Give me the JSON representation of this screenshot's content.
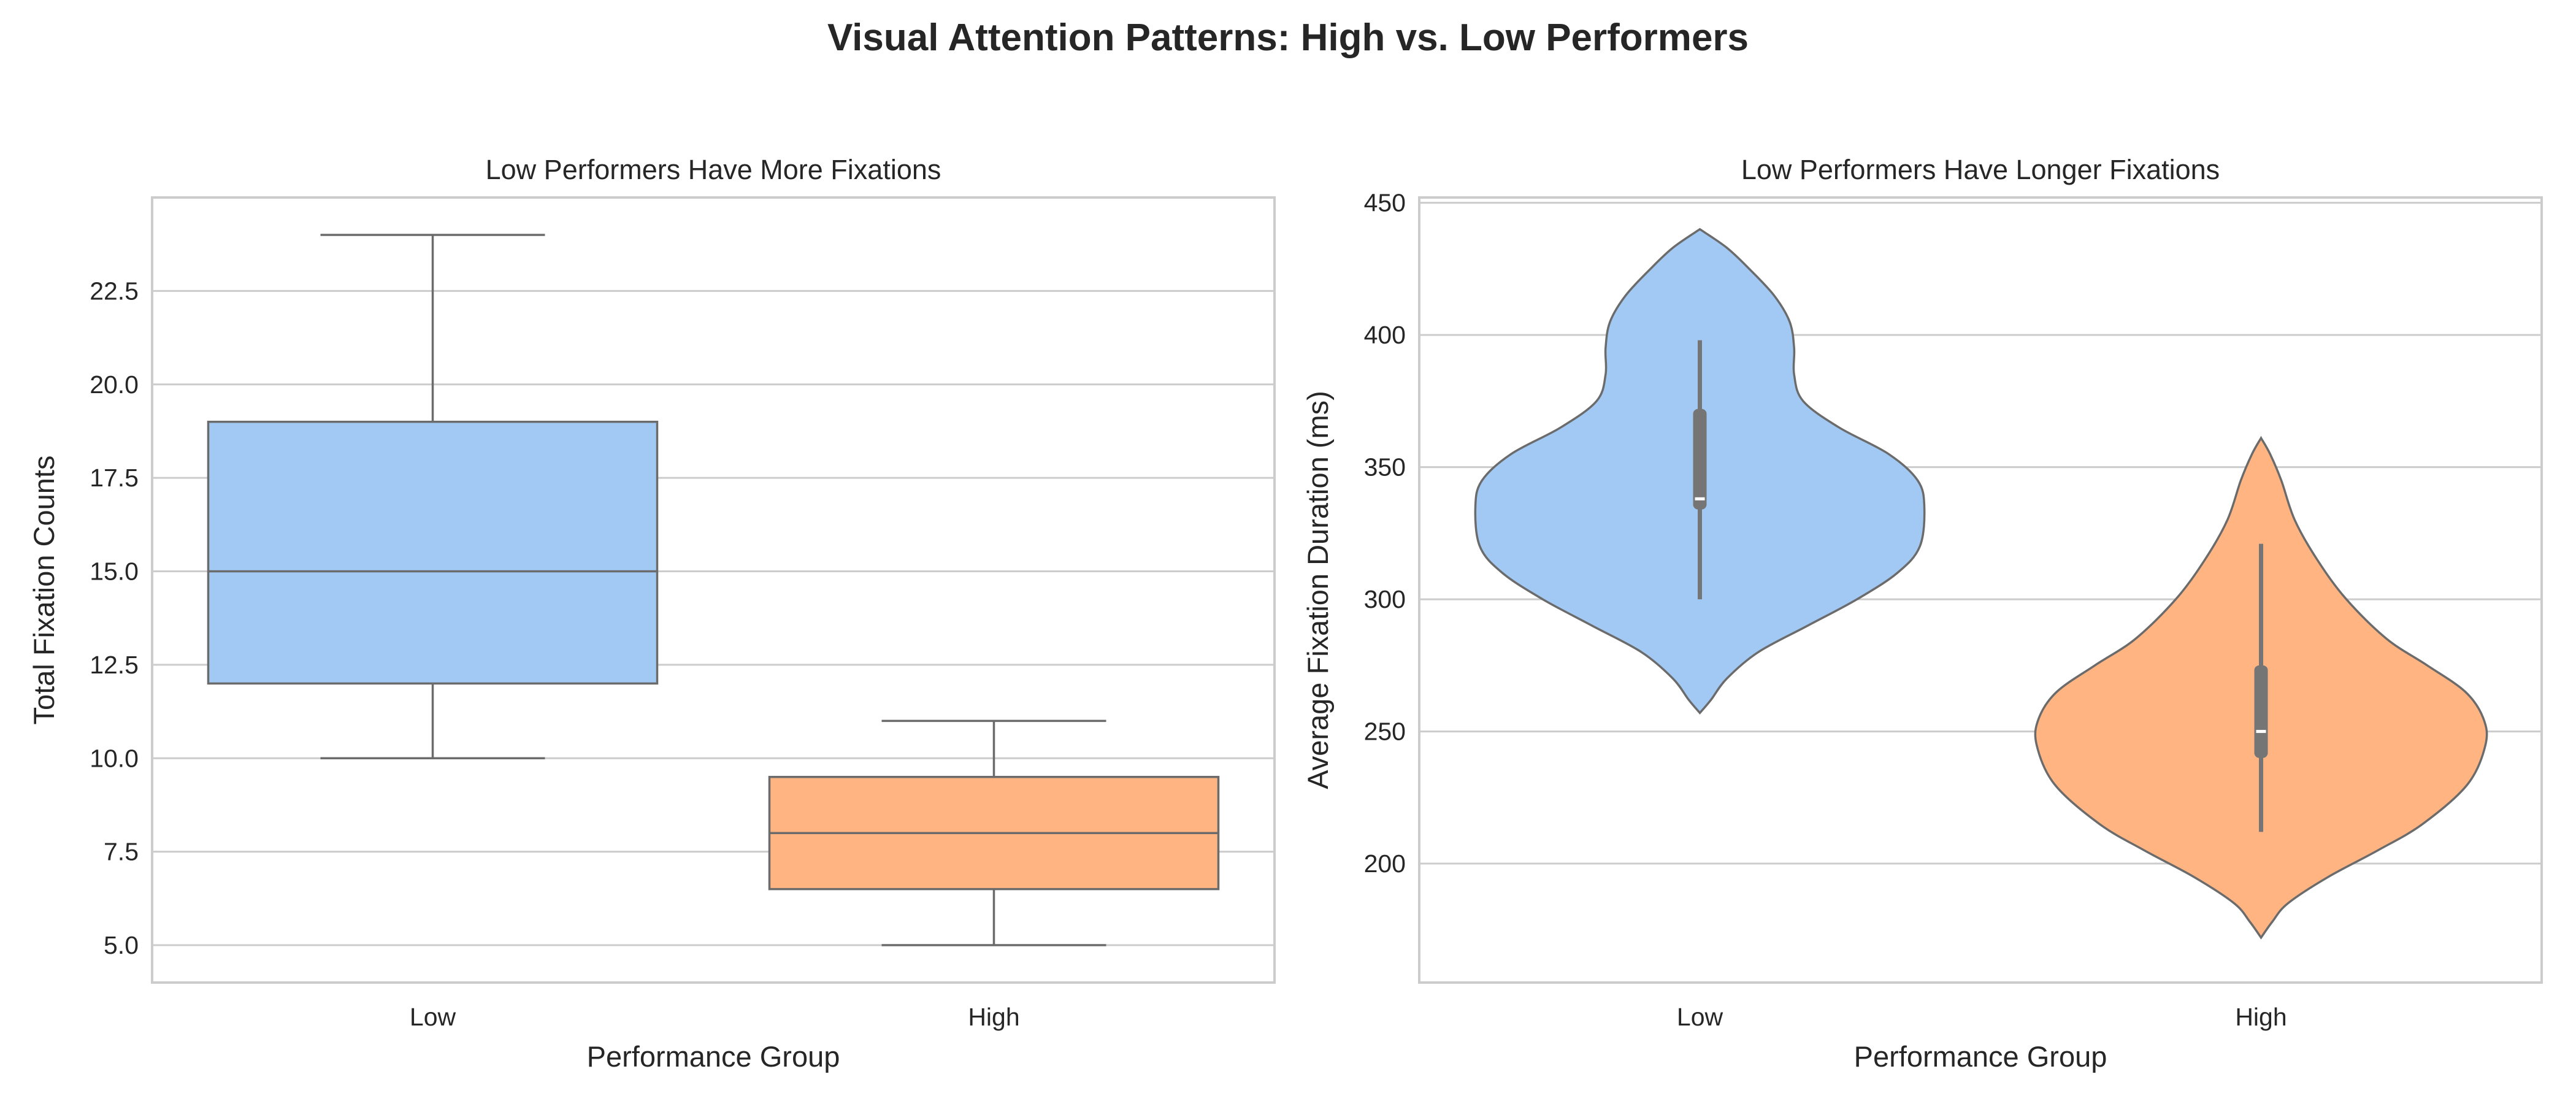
{
  "figure": {
    "title": "Visual Attention Patterns: High vs. Low Performers"
  },
  "colors": {
    "low": "#a1c9f4",
    "high": "#ffb482",
    "edge": "#6b6b6b",
    "grid": "#cccccc",
    "frame": "#cccccc",
    "inner_box": "#757575",
    "median_marker": "#ffffff"
  },
  "chart_data": [
    {
      "type": "box",
      "title": "Low Performers Have More Fixations",
      "xlabel": "Performance Group",
      "ylabel": "Total Fixation Counts",
      "categories": [
        "Low",
        "High"
      ],
      "ylim": [
        4.0,
        25.0
      ],
      "yticks": [
        5.0,
        7.5,
        10.0,
        12.5,
        15.0,
        17.5,
        20.0,
        22.5
      ],
      "ytick_labels": [
        "5.0",
        "7.5",
        "10.0",
        "12.5",
        "15.0",
        "17.5",
        "20.0",
        "22.5"
      ],
      "grid": "horizontal",
      "boxes": [
        {
          "category": "Low",
          "whisker_low": 10.0,
          "q1": 12.0,
          "median": 15.0,
          "q3": 19.0,
          "whisker_high": 24.0
        },
        {
          "category": "High",
          "whisker_low": 5.0,
          "q1": 6.5,
          "median": 8.0,
          "q3": 9.5,
          "whisker_high": 11.0
        }
      ]
    },
    {
      "type": "violin",
      "title": "Low Performers Have Longer Fixations",
      "xlabel": "Performance Group",
      "ylabel": "Average Fixation Duration (ms)",
      "categories": [
        "Low",
        "High"
      ],
      "ylim": [
        155,
        452
      ],
      "yticks": [
        200,
        250,
        300,
        350,
        400,
        450
      ],
      "ytick_labels": [
        "200",
        "250",
        "300",
        "350",
        "400",
        "450"
      ],
      "grid": "horizontal",
      "violins": [
        {
          "category": "Low",
          "kde_extent": [
            257,
            440
          ],
          "density_profile": [
            [
              257,
              0.0
            ],
            [
              262,
              0.05
            ],
            [
              270,
              0.12
            ],
            [
              280,
              0.26
            ],
            [
              290,
              0.48
            ],
            [
              300,
              0.7
            ],
            [
              310,
              0.88
            ],
            [
              320,
              0.98
            ],
            [
              335,
              1.0
            ],
            [
              345,
              0.97
            ],
            [
              355,
              0.84
            ],
            [
              365,
              0.62
            ],
            [
              375,
              0.46
            ],
            [
              385,
              0.42
            ],
            [
              395,
              0.42
            ],
            [
              405,
              0.4
            ],
            [
              415,
              0.33
            ],
            [
              425,
              0.22
            ],
            [
              433,
              0.12
            ],
            [
              440,
              0.0
            ]
          ],
          "quartiles": [
            334,
            338,
            372
          ],
          "whiskers": [
            300,
            398
          ]
        },
        {
          "category": "High",
          "kde_extent": [
            172,
            361
          ],
          "density_profile": [
            [
              172,
              0.0
            ],
            [
              178,
              0.05
            ],
            [
              185,
              0.12
            ],
            [
              195,
              0.3
            ],
            [
              205,
              0.52
            ],
            [
              215,
              0.72
            ],
            [
              230,
              0.92
            ],
            [
              245,
              1.0
            ],
            [
              255,
              0.99
            ],
            [
              265,
              0.91
            ],
            [
              275,
              0.74
            ],
            [
              285,
              0.56
            ],
            [
              300,
              0.38
            ],
            [
              315,
              0.25
            ],
            [
              330,
              0.15
            ],
            [
              345,
              0.09
            ],
            [
              355,
              0.04
            ],
            [
              361,
              0.0
            ]
          ],
          "quartiles": [
            240,
            250,
            275
          ],
          "whiskers": [
            212,
            321
          ]
        }
      ]
    }
  ]
}
